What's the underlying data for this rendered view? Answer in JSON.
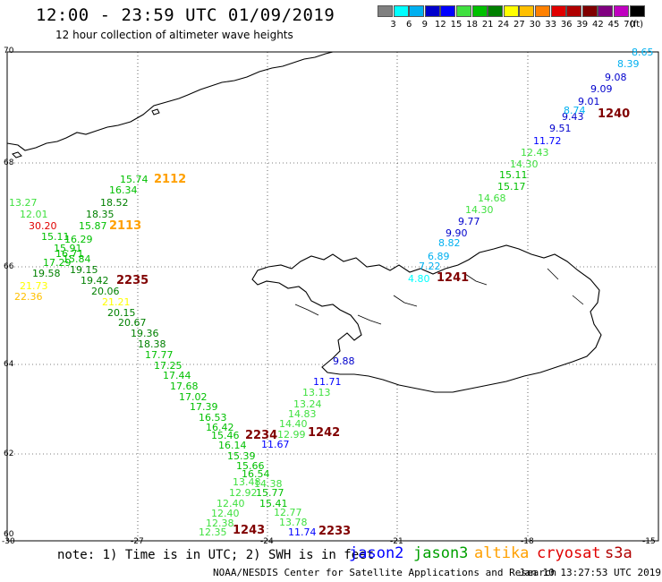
{
  "title": "12:00 - 23:59 UTC 01/09/2019",
  "subtitle": "12 hour collection of altimeter wave heights",
  "colorbar": {
    "colors": [
      "#808080",
      "#00ffff",
      "#00b0f0",
      "#0000cc",
      "#0000ff",
      "#40e040",
      "#00c000",
      "#008000",
      "#ffff00",
      "#ffc000",
      "#ff8000",
      "#e00000",
      "#b00000",
      "#800000",
      "#800080",
      "#c000c0",
      "#000000"
    ],
    "labels": [
      "3",
      "6",
      "9",
      "12",
      "15",
      "18",
      "21",
      "24",
      "27",
      "30",
      "33",
      "36",
      "39",
      "42",
      "45",
      "70"
    ],
    "unit": "(ft)"
  },
  "axes": {
    "lat_labels": [
      "70",
      "68",
      "66",
      "64",
      "62",
      "60"
    ],
    "lon_labels": [
      "-30",
      "-27",
      "-24",
      "-21",
      "-18",
      "-15"
    ]
  },
  "measurements": [
    {
      "text": "8.65",
      "color": "#00b0f0"
    },
    {
      "text": "8.39",
      "color": "#00b0f0"
    },
    {
      "text": "9.08",
      "color": "#0000cc"
    },
    {
      "text": "9.09",
      "color": "#0000cc"
    },
    {
      "text": "9.01",
      "color": "#0000cc"
    },
    {
      "text": "9.43",
      "color": "#0000cc"
    },
    {
      "text": "8.74",
      "color": "#00b0f0"
    },
    {
      "text": "1240",
      "color": "#800000"
    },
    {
      "text": "9.51",
      "color": "#0000cc"
    },
    {
      "text": "11.72",
      "color": "#0000ff"
    },
    {
      "text": "12.43",
      "color": "#40e040"
    },
    {
      "text": "14.30",
      "color": "#40e040"
    },
    {
      "text": "15.11",
      "color": "#00c000"
    },
    {
      "text": "15.17",
      "color": "#00c000"
    },
    {
      "text": "14.68",
      "color": "#40e040"
    },
    {
      "text": "14.30",
      "color": "#40e040"
    },
    {
      "text": "9.77",
      "color": "#0000cc"
    },
    {
      "text": "9.90",
      "color": "#0000cc"
    },
    {
      "text": "8.82",
      "color": "#00b0f0"
    },
    {
      "text": "6.89",
      "color": "#00b0f0"
    },
    {
      "text": "7.22",
      "color": "#00b0f0"
    },
    {
      "text": "4.80",
      "color": "#00ffff"
    },
    {
      "text": "1241",
      "color": "#800000"
    },
    {
      "text": "15.74",
      "color": "#00c000"
    },
    {
      "text": "2112",
      "color": "#ffa000"
    },
    {
      "text": "16.34",
      "color": "#00c000"
    },
    {
      "text": "13.27",
      "color": "#40e040"
    },
    {
      "text": "18.52",
      "color": "#008000"
    },
    {
      "text": "12.01",
      "color": "#40e040"
    },
    {
      "text": "18.35",
      "color": "#008000"
    },
    {
      "text": "30.20",
      "color": "#e00000"
    },
    {
      "text": "15.87",
      "color": "#00c000"
    },
    {
      "text": "2113",
      "color": "#ffa000"
    },
    {
      "text": "15.11",
      "color": "#00c000"
    },
    {
      "text": "16.29",
      "color": "#00c000"
    },
    {
      "text": "15.91",
      "color": "#00c000"
    },
    {
      "text": "16.71",
      "color": "#00c000"
    },
    {
      "text": "15.84",
      "color": "#00c000"
    },
    {
      "text": "17.29",
      "color": "#00c000"
    },
    {
      "text": "19.15",
      "color": "#008000"
    },
    {
      "text": "19.58",
      "color": "#008000"
    },
    {
      "text": "19.42",
      "color": "#008000"
    },
    {
      "text": "2235",
      "color": "#800000"
    },
    {
      "text": "21.73",
      "color": "#ffff00"
    },
    {
      "text": "20.06",
      "color": "#008000"
    },
    {
      "text": "22.36",
      "color": "#ffc000"
    },
    {
      "text": "21.21",
      "color": "#ffff00"
    },
    {
      "text": "20.15",
      "color": "#008000"
    },
    {
      "text": "20.67",
      "color": "#008000"
    },
    {
      "text": "19.36",
      "color": "#008000"
    },
    {
      "text": "18.38",
      "color": "#008000"
    },
    {
      "text": "17.77",
      "color": "#00c000"
    },
    {
      "text": "17.25",
      "color": "#00c000"
    },
    {
      "text": "17.44",
      "color": "#00c000"
    },
    {
      "text": "17.68",
      "color": "#00c000"
    },
    {
      "text": "17.02",
      "color": "#00c000"
    },
    {
      "text": "17.39",
      "color": "#00c000"
    },
    {
      "text": "16.53",
      "color": "#00c000"
    },
    {
      "text": "16.42",
      "color": "#00c000"
    },
    {
      "text": "15.46",
      "color": "#00c000"
    },
    {
      "text": "2234",
      "color": "#800000"
    },
    {
      "text": "16.14",
      "color": "#00c000"
    },
    {
      "text": "15.39",
      "color": "#00c000"
    },
    {
      "text": "15.66",
      "color": "#00c000"
    },
    {
      "text": "16.54",
      "color": "#00c000"
    },
    {
      "text": "13.48",
      "color": "#40e040"
    },
    {
      "text": "14.38",
      "color": "#40e040"
    },
    {
      "text": "12.92",
      "color": "#40e040"
    },
    {
      "text": "12.40",
      "color": "#40e040"
    },
    {
      "text": "12.40",
      "color": "#40e040"
    },
    {
      "text": "12.38",
      "color": "#40e040"
    },
    {
      "text": "12.35",
      "color": "#40e040"
    },
    {
      "text": "1243",
      "color": "#800000"
    },
    {
      "text": "9.88",
      "color": "#0000cc"
    },
    {
      "text": "11.71",
      "color": "#0000ff"
    },
    {
      "text": "13.13",
      "color": "#40e040"
    },
    {
      "text": "13.24",
      "color": "#40e040"
    },
    {
      "text": "14.83",
      "color": "#40e040"
    },
    {
      "text": "14.40",
      "color": "#40e040"
    },
    {
      "text": "12.99",
      "color": "#40e040"
    },
    {
      "text": "1242",
      "color": "#800000"
    },
    {
      "text": "11.67",
      "color": "#0000ff"
    },
    {
      "text": "15.77",
      "color": "#00c000"
    },
    {
      "text": "15.41",
      "color": "#00c000"
    },
    {
      "text": "12.77",
      "color": "#40e040"
    },
    {
      "text": "13.78",
      "color": "#40e040"
    },
    {
      "text": "11.74",
      "color": "#0000ff"
    },
    {
      "text": "2233",
      "color": "#800000"
    }
  ],
  "footer": {
    "note": "note: 1) Time is in UTC; 2) SWH is in feet",
    "legend": [
      {
        "name": "jason2",
        "color": "#0000ff"
      },
      {
        "name": "jason3",
        "color": "#00a000"
      },
      {
        "name": "altika",
        "color": "#ffa000"
      },
      {
        "name": "cryosat",
        "color": "#e00000"
      },
      {
        "name": "s3a",
        "color": "#b00000"
      }
    ],
    "credit": "NOAA/NESDIS Center for Satellite Applications and Research",
    "timestamp": "Jan 10 13:27:53 UTC 2019"
  }
}
